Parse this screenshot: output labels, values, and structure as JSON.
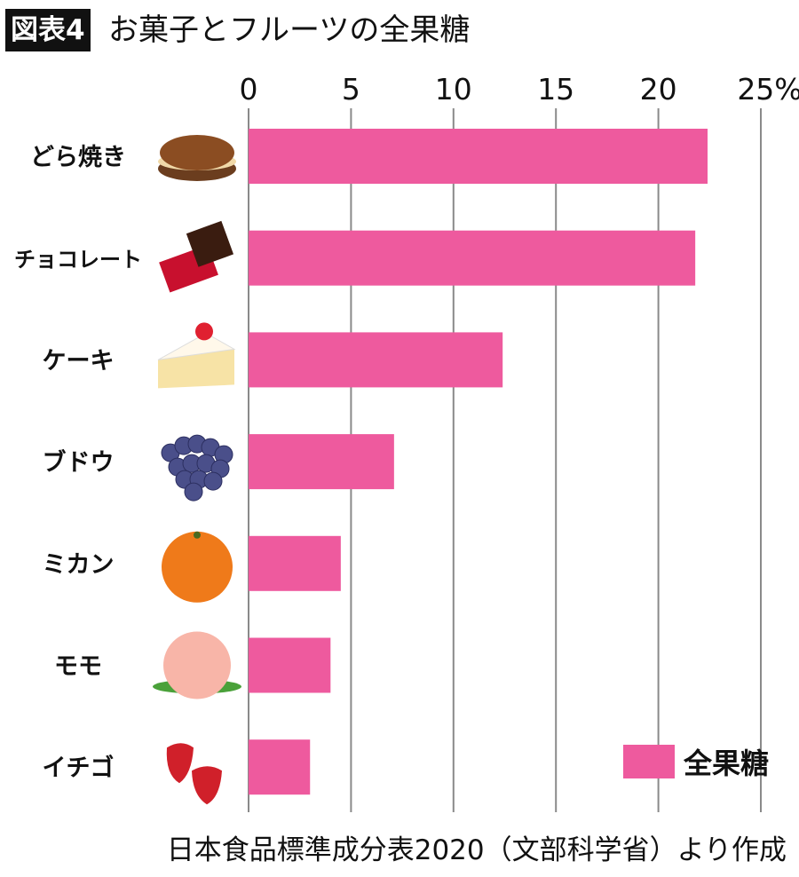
{
  "header": {
    "badge": "図表4",
    "title": "お菓子とフルーツの全果糖"
  },
  "source": "日本食品標準成分表2020（文部科学省）より作成",
  "colors": {
    "bar": "#EE5A9E",
    "grid": "#8a8a8a"
  },
  "chart_data": {
    "type": "bar",
    "orientation": "horizontal",
    "title": "お菓子とフルーツの全果糖",
    "categories": [
      "どら焼き",
      "チョコレート",
      "ケーキ",
      "ブドウ",
      "ミカン",
      "モモ",
      "イチゴ"
    ],
    "icons": [
      "dorayaki-icon",
      "chocolate-icon",
      "cake-icon",
      "grape-icon",
      "mandarin-icon",
      "peach-icon",
      "strawberry-icon"
    ],
    "series": [
      {
        "name": "全果糖",
        "values": [
          22.4,
          21.8,
          12.4,
          7.1,
          4.5,
          4.0,
          3.0
        ]
      }
    ],
    "xlim": [
      0,
      25
    ],
    "xticks": [
      "0",
      "5",
      "10",
      "15",
      "20",
      "25%"
    ],
    "xtick_values": [
      0,
      5,
      10,
      15,
      20,
      25
    ],
    "axis_position": "top",
    "grid": true,
    "legend": "bottom-right"
  }
}
